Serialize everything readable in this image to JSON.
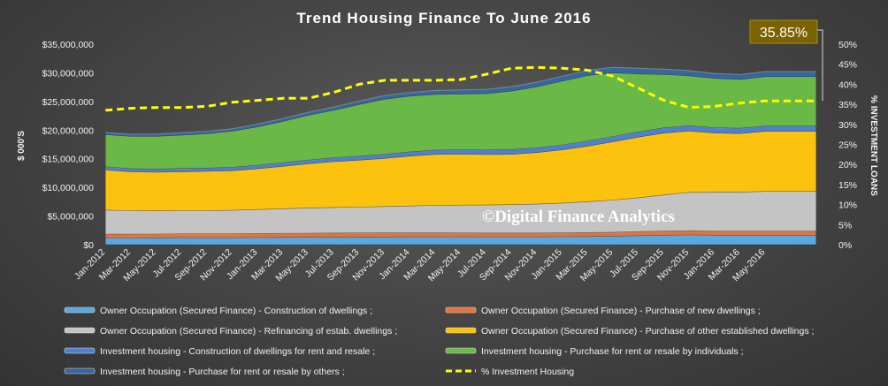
{
  "chart_data": {
    "type": "area",
    "title": "Trend Housing Finance To June 2016",
    "ylabel": "$ 000'S",
    "y2label": "% INVESTMENT LOANS",
    "ylim": [
      0,
      35000000
    ],
    "y2lim": [
      0,
      50
    ],
    "yticks": [
      0,
      5000000,
      10000000,
      15000000,
      20000000,
      25000000,
      30000000,
      35000000
    ],
    "ytick_labels": [
      "$0",
      "$5,000,000",
      "$10,000,000",
      "$15,000,000",
      "$20,000,000",
      "$25,000,000",
      "$30,000,000",
      "$35,000,000"
    ],
    "y2ticks": [
      0,
      5,
      10,
      15,
      20,
      25,
      30,
      35,
      40,
      45,
      50
    ],
    "y2tick_labels": [
      "0%",
      "5%",
      "10%",
      "15%",
      "20%",
      "25%",
      "30%",
      "35%",
      "40%",
      "45%",
      "50%"
    ],
    "x": [
      "Jan-2012",
      "Mar-2012",
      "May-2012",
      "Jul-2012",
      "Sep-2012",
      "Nov-2012",
      "Jan-2013",
      "Mar-2013",
      "May-2013",
      "Jul-2013",
      "Sep-2013",
      "Nov-2013",
      "Jan-2014",
      "Mar-2014",
      "May-2014",
      "Jul-2014",
      "Sep-2014",
      "Nov-2014",
      "Jan-2015",
      "Mar-2015",
      "May-2015",
      "Jul-2015",
      "Sep-2015",
      "Nov-2015",
      "Jan-2016",
      "Mar-2016",
      "May-2016"
    ],
    "x_month_step": 2,
    "x_last": "Jun-2016",
    "grid": false,
    "legend_position": "bottom",
    "series": [
      {
        "name": "Owner Occupation (Secured Finance) - Construction of dwellings ;",
        "color": "#5aa8e0",
        "values": [
          1150000,
          1150000,
          1170000,
          1200000,
          1200000,
          1200000,
          1230000,
          1260000,
          1280000,
          1300000,
          1320000,
          1340000,
          1350000,
          1360000,
          1360000,
          1350000,
          1350000,
          1350000,
          1380000,
          1420000,
          1480000,
          1560000,
          1650000,
          1700000,
          1650000,
          1650000,
          1650000
        ]
      },
      {
        "name": "Owner Occupation (Secured Finance) - Purchase of new dwellings ;",
        "color": "#e0743c",
        "values": [
          700000,
          680000,
          680000,
          690000,
          690000,
          700000,
          710000,
          720000,
          730000,
          740000,
          730000,
          720000,
          710000,
          700000,
          690000,
          680000,
          680000,
          680000,
          680000,
          690000,
          700000,
          720000,
          730000,
          740000,
          740000,
          740000,
          740000
        ]
      },
      {
        "name": "Owner Occupation (Secured Finance) - Refinancing of estab. dwellings ;",
        "color": "#c4c4c4",
        "values": [
          4200000,
          4100000,
          4050000,
          4050000,
          4050000,
          4100000,
          4200000,
          4300000,
          4400000,
          4450000,
          4500000,
          4600000,
          4700000,
          4800000,
          4850000,
          4900000,
          4950000,
          5050000,
          5200000,
          5400000,
          5600000,
          5900000,
          6300000,
          6700000,
          6800000,
          6800000,
          6900000
        ]
      },
      {
        "name": "Owner Occupation (Secured Finance) - Purchase of other established dwellings ;",
        "color": "#fcc20e",
        "values": [
          7000000,
          6800000,
          6750000,
          6800000,
          6850000,
          6900000,
          7100000,
          7400000,
          7700000,
          8000000,
          8200000,
          8400000,
          8700000,
          8900000,
          8900000,
          8800000,
          8800000,
          9000000,
          9300000,
          9700000,
          10200000,
          10600000,
          10800000,
          10700000,
          10300000,
          10200000,
          10500000
        ]
      },
      {
        "name": "Investment housing - Construction of dwellings for rent and resale ;",
        "color": "#4f7fd0",
        "values": [
          550000,
          550000,
          560000,
          570000,
          580000,
          600000,
          620000,
          640000,
          660000,
          680000,
          700000,
          720000,
          740000,
          760000,
          780000,
          800000,
          820000,
          840000,
          860000,
          880000,
          900000,
          910000,
          920000,
          930000,
          930000,
          930000,
          930000
        ]
      },
      {
        "name": "Investment housing - Purchase for rent or resale by individuals ;",
        "color": "#6ab845",
        "values": [
          5600000,
          5600000,
          5700000,
          5800000,
          6000000,
          6300000,
          6700000,
          7200000,
          7800000,
          8300000,
          9000000,
          9600000,
          9700000,
          9700000,
          9700000,
          9800000,
          10200000,
          10600000,
          11100000,
          11400000,
          11100000,
          10100000,
          9300000,
          8700000,
          8600000,
          8500000,
          8600000
        ]
      },
      {
        "name": "Investment housing - Purchase for rent or resale by others ;",
        "color": "#35669c",
        "values": [
          400000,
          400000,
          410000,
          420000,
          430000,
          450000,
          480000,
          510000,
          540000,
          570000,
          600000,
          630000,
          660000,
          690000,
          720000,
          760000,
          800000,
          850000,
          900000,
          950000,
          1000000,
          1000000,
          950000,
          900000,
          880000,
          880000,
          900000
        ]
      }
    ],
    "line_series": {
      "name": "% Investment Housing",
      "color": "#ffff00",
      "axis": "right",
      "values": [
        33.5,
        34.0,
        34.2,
        34.2,
        34.5,
        35.5,
        36.0,
        36.5,
        36.5,
        38.0,
        40.0,
        41.0,
        41.0,
        41.0,
        41.2,
        42.5,
        44.0,
        44.2,
        44.0,
        43.5,
        42.0,
        39.0,
        36.0,
        34.2,
        34.5,
        35.3,
        35.85
      ]
    },
    "callout": {
      "label": "35.85%",
      "color": "#7a6200"
    },
    "watermark": "©Digital Finance Analytics"
  }
}
